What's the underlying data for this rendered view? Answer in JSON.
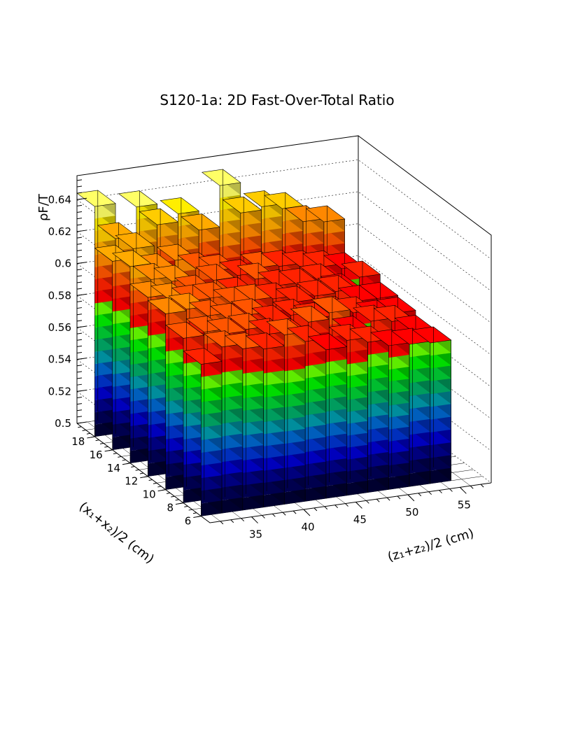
{
  "chart_data": {
    "type": "lego3d",
    "title": "S120-1a: 2D Fast-Over-Total Ratio",
    "xlabel": "(z₁+z₂)/2 (cm)",
    "ylabel": "(x₁+x₂)/2 (cm)",
    "zlabel": "ρF/T",
    "xlim": [
      31,
      58
    ],
    "ylim": [
      5,
      20
    ],
    "zlim": [
      0.5,
      0.655
    ],
    "x_ticks": [
      "35",
      "40",
      "45",
      "50",
      "55"
    ],
    "y_ticks": [
      "6",
      "8",
      "10",
      "12",
      "14",
      "16",
      "18"
    ],
    "z_ticks": [
      "0.5",
      "0.52",
      "0.54",
      "0.56",
      "0.58",
      "0.6",
      "0.62",
      "0.64"
    ],
    "grid": true,
    "bins_z": [
      32,
      34,
      36,
      38,
      40,
      42,
      44,
      46,
      48,
      50,
      52,
      54
    ],
    "bins_x": [
      7,
      9,
      11,
      13,
      15,
      17,
      19
    ],
    "colors": [
      "#000033",
      "#000055",
      "#000088",
      "#0000cc",
      "#0033cc",
      "#0066cc",
      "#0099aa",
      "#00aa66",
      "#00cc33",
      "#00ee00",
      "#66ff00",
      "#ff0000",
      "#ff2200",
      "#ff5500",
      "#ff8800",
      "#ffaa00",
      "#ffcc00",
      "#ffee00",
      "#ffff66",
      "#ffffff"
    ],
    "values": [
      [
        0.595,
        0.604,
        0.601,
        0.599,
        0.606,
        0.6,
        0.593,
        0.597,
        0.594,
        0.59,
        0.589,
        0.588
      ],
      [
        0.603,
        0.605,
        0.602,
        0.603,
        0.598,
        0.596,
        0.602,
        0.606,
        0.592,
        0.597,
        0.595,
        0.587
      ],
      [
        0.61,
        0.611,
        0.605,
        0.601,
        0.602,
        0.596,
        0.598,
        0.594,
        0.596,
        0.594,
        0.59,
        0.59
      ],
      [
        0.612,
        0.609,
        0.606,
        0.606,
        0.601,
        0.601,
        0.6,
        0.596,
        0.598,
        0.599,
        0.591,
        0.591
      ],
      [
        0.623,
        0.613,
        0.61,
        0.602,
        0.607,
        0.597,
        0.604,
        0.598,
        0.597,
        0.598,
        0.59,
        0.596
      ],
      [
        0.618,
        0.624,
        0.609,
        0.613,
        0.606,
        0.603,
        0.598,
        0.601,
        0.6,
        0.598,
        0.596,
        0.593
      ],
      [
        0.644,
        0.622,
        0.64,
        0.627,
        0.632,
        0.62,
        0.646,
        0.627,
        0.629,
        0.626,
        0.616,
        0.614
      ]
    ]
  }
}
